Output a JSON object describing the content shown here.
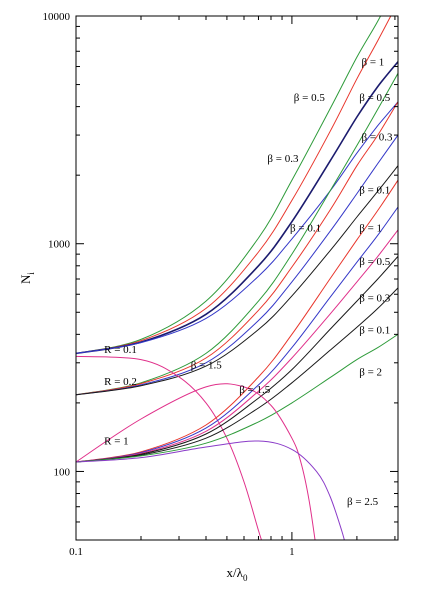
{
  "chart_data": {
    "type": "line",
    "title": "",
    "xlabel": "x/λ",
    "xlabel_sub": "0",
    "ylabel": "N",
    "ylabel_sub": "i",
    "xscale": "log",
    "yscale": "log",
    "xlim": [
      0.1,
      3.1
    ],
    "ylim": [
      50,
      10000
    ],
    "grid": false,
    "legend": "none",
    "x_ticks": [
      {
        "value": 0.1,
        "label": "0.1"
      },
      {
        "value": 1,
        "label": "1"
      }
    ],
    "y_ticks": [
      {
        "value": 100,
        "label": "100"
      },
      {
        "value": 1000,
        "label": "1000"
      },
      {
        "value": 10000,
        "label": "10000"
      }
    ],
    "colors": {
      "black": "#1a1a1a",
      "red": "#e8362c",
      "green": "#2e9b3a",
      "blue": "#3438c8",
      "navy": "#1b1b6e",
      "magenta": "#e0308a",
      "purple": "#8a3bc8"
    },
    "series": [
      {
        "color": "green",
        "x": [
          0.1,
          0.2,
          0.4,
          0.7,
          1.0,
          1.5,
          2.0,
          2.5,
          3.1
        ],
        "y": [
          330,
          380,
          560,
          1060,
          1900,
          3900,
          6600,
          9500,
          14000
        ]
      },
      {
        "color": "red",
        "x": [
          0.1,
          0.2,
          0.4,
          0.7,
          1.0,
          1.5,
          2.0,
          2.5,
          3.1
        ],
        "y": [
          330,
          375,
          520,
          920,
          1550,
          3100,
          5300,
          7800,
          11500
        ]
      },
      {
        "color": "navy",
        "x": [
          0.1,
          0.2,
          0.4,
          0.7,
          1.0,
          1.5,
          2.0,
          2.5,
          3.1
        ],
        "y": [
          330,
          370,
          490,
          800,
          1250,
          2300,
          3600,
          4900,
          6300
        ]
      },
      {
        "color": "blue",
        "x": [
          0.1,
          0.2,
          0.4,
          0.7,
          1.0,
          1.5,
          2.0,
          2.5,
          3.1
        ],
        "y": [
          330,
          368,
          470,
          720,
          1050,
          1700,
          2500,
          3300,
          4200
        ]
      },
      {
        "color": "green",
        "x": [
          0.1,
          0.2,
          0.4,
          0.7,
          1.0,
          1.5,
          2.0,
          2.5,
          3.1
        ],
        "y": [
          217,
          245,
          330,
          560,
          900,
          1700,
          2700,
          3900,
          5600
        ]
      },
      {
        "color": "red",
        "x": [
          0.1,
          0.2,
          0.4,
          0.7,
          1.0,
          1.5,
          2.0,
          2.5,
          3.1
        ],
        "y": [
          217,
          243,
          315,
          510,
          790,
          1400,
          2200,
          3000,
          4200
        ]
      },
      {
        "color": "blue",
        "x": [
          0.1,
          0.2,
          0.4,
          0.7,
          1.0,
          1.5,
          2.0,
          2.5,
          3.1
        ],
        "y": [
          217,
          240,
          300,
          460,
          680,
          1130,
          1660,
          2250,
          3000
        ]
      },
      {
        "color": "black",
        "x": [
          0.1,
          0.2,
          0.4,
          0.7,
          1.0,
          1.5,
          2.0,
          2.5,
          3.1
        ],
        "y": [
          217,
          238,
          290,
          420,
          590,
          930,
          1310,
          1700,
          2200
        ]
      },
      {
        "color": "magenta",
        "x": [
          0.1,
          0.2,
          0.3,
          0.4,
          0.5,
          0.6,
          0.7,
          0.75
        ],
        "y": [
          320,
          310,
          260,
          200,
          140,
          90,
          55,
          45
        ]
      },
      {
        "color": "red",
        "x": [
          0.1,
          0.2,
          0.4,
          0.7,
          1.0,
          1.5,
          2.0,
          2.5,
          3.1
        ],
        "y": [
          110,
          122,
          160,
          260,
          400,
          700,
          1040,
          1400,
          1900
        ]
      },
      {
        "color": "blue",
        "x": [
          0.1,
          0.2,
          0.4,
          0.7,
          1.0,
          1.5,
          2.0,
          2.5,
          3.1
        ],
        "y": [
          110,
          121,
          155,
          240,
          350,
          580,
          830,
          1090,
          1450
        ]
      },
      {
        "color": "magenta",
        "x": [
          0.1,
          0.2,
          0.4,
          0.7,
          1.0,
          1.5,
          2.0,
          2.5,
          3.1
        ],
        "y": [
          110,
          120,
          150,
          225,
          315,
          490,
          680,
          880,
          1150
        ]
      },
      {
        "color": "black",
        "x": [
          0.1,
          0.2,
          0.4,
          0.7,
          1.0,
          1.5,
          2.0,
          2.5,
          3.1
        ],
        "y": [
          110,
          119,
          146,
          210,
          280,
          420,
          560,
          700,
          880
        ]
      },
      {
        "color": "black",
        "x": [
          0.1,
          0.2,
          0.4,
          0.7,
          1.0,
          1.5,
          2.0,
          2.5,
          3.1
        ],
        "y": [
          110,
          118,
          140,
          190,
          245,
          340,
          430,
          520,
          640
        ]
      },
      {
        "color": "green",
        "x": [
          0.1,
          0.2,
          0.4,
          0.7,
          1.0,
          1.5,
          2.0,
          2.5,
          3.1
        ],
        "y": [
          110,
          117,
          133,
          165,
          200,
          258,
          310,
          350,
          400
        ]
      },
      {
        "color": "magenta",
        "x": [
          0.1,
          0.2,
          0.4,
          0.6,
          0.8,
          1.0,
          1.1,
          1.2,
          1.3
        ],
        "y": [
          110,
          170,
          235,
          235,
          195,
          140,
          110,
          75,
          45
        ]
      },
      {
        "color": "purple",
        "x": [
          0.1,
          0.2,
          0.4,
          0.7,
          1.0,
          1.3,
          1.5,
          1.7,
          1.8
        ],
        "y": [
          110,
          115,
          128,
          136,
          125,
          100,
          78,
          55,
          45
        ]
      }
    ],
    "labels": [
      {
        "text": "R = 0.1",
        "x": 0.135,
        "y": 345
      },
      {
        "text": "R = 0.2",
        "x": 0.135,
        "y": 250
      },
      {
        "text": "R = 1",
        "x": 0.135,
        "y": 137
      },
      {
        "text": "β = 1.5",
        "x": 0.34,
        "y": 295
      },
      {
        "text": "β = 1.5",
        "x": 0.57,
        "y": 230
      },
      {
        "text": "β = 0.5",
        "x": 1.02,
        "y": 4400
      },
      {
        "text": "β = 0.3",
        "x": 0.77,
        "y": 2380
      },
      {
        "text": "β = 0.1",
        "x": 0.98,
        "y": 1180
      },
      {
        "text": "β = 1",
        "x": 2.1,
        "y": 6300
      },
      {
        "text": "β = 0.5",
        "x": 2.05,
        "y": 4400
      },
      {
        "text": "β = 0.3",
        "x": 2.1,
        "y": 2950
      },
      {
        "text": "β = 0.1",
        "x": 2.05,
        "y": 1730
      },
      {
        "text": "β = 1",
        "x": 2.05,
        "y": 1180
      },
      {
        "text": "β = 0.5",
        "x": 2.05,
        "y": 840
      },
      {
        "text": "β = 0.3",
        "x": 2.05,
        "y": 580
      },
      {
        "text": "β = 0.1",
        "x": 2.05,
        "y": 420
      },
      {
        "text": "β = 2",
        "x": 2.05,
        "y": 275
      },
      {
        "text": "β = 2.5",
        "x": 1.8,
        "y": 74
      }
    ]
  }
}
